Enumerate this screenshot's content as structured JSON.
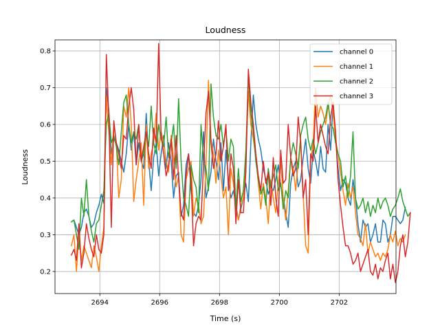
{
  "chart_data": {
    "type": "line",
    "title": "Loudness",
    "xlabel": "Time (s)",
    "ylabel": "Loudness",
    "xlim": [
      2692.5,
      2703.9
    ],
    "ylim": [
      0.14,
      0.83
    ],
    "xticks": [
      2694,
      2696,
      2698,
      2700,
      2702
    ],
    "yticks": [
      0.2,
      0.3,
      0.4,
      0.5,
      0.6,
      0.7,
      0.8
    ],
    "grid": true,
    "legend_position": "top-right",
    "x_start": 2693.05,
    "x_step": 0.0833,
    "series": [
      {
        "name": "channel 0",
        "color": "#1f77b4",
        "values": [
          0.335,
          0.34,
          0.32,
          0.3,
          0.32,
          0.36,
          0.37,
          0.35,
          0.32,
          0.33,
          0.36,
          0.38,
          0.41,
          0.385,
          0.7,
          0.64,
          0.52,
          0.56,
          0.55,
          0.53,
          0.5,
          0.47,
          0.52,
          0.6,
          0.53,
          0.58,
          0.49,
          0.55,
          0.5,
          0.48,
          0.63,
          0.5,
          0.42,
          0.51,
          0.55,
          0.46,
          0.52,
          0.57,
          0.48,
          0.55,
          0.5,
          0.4,
          0.46,
          0.47,
          0.35,
          0.38,
          0.49,
          0.52,
          0.42,
          0.36,
          0.35,
          0.38,
          0.45,
          0.58,
          0.4,
          0.43,
          0.47,
          0.56,
          0.5,
          0.45,
          0.55,
          0.42,
          0.53,
          0.45,
          0.4,
          0.42,
          0.38,
          0.34,
          0.37,
          0.4,
          0.44,
          0.39,
          0.55,
          0.68,
          0.6,
          0.56,
          0.53,
          0.48,
          0.45,
          0.41,
          0.43,
          0.42,
          0.45,
          0.49,
          0.43,
          0.4,
          0.36,
          0.32,
          0.44,
          0.48,
          0.5,
          0.43,
          0.45,
          0.51,
          0.56,
          0.48,
          0.44,
          0.53,
          0.5,
          0.46,
          0.54,
          0.48,
          0.47,
          0.6,
          0.53,
          0.66,
          0.56,
          0.48,
          0.42,
          0.45,
          0.44,
          0.4,
          0.38,
          0.45,
          0.4,
          0.33,
          0.28,
          0.34,
          0.32,
          0.33,
          0.28,
          0.3,
          0.33,
          0.28,
          0.28,
          0.34,
          0.33,
          0.28,
          0.3,
          0.35,
          0.35,
          0.34,
          0.33,
          0.34,
          0.375
        ]
      },
      {
        "name": "channel 1",
        "color": "#ff7f0e",
        "values": [
          0.27,
          0.3,
          0.2,
          0.3,
          0.23,
          0.27,
          0.25,
          0.23,
          0.21,
          0.27,
          0.24,
          0.2,
          0.27,
          0.32,
          0.68,
          0.58,
          0.49,
          0.6,
          0.55,
          0.4,
          0.45,
          0.65,
          0.62,
          0.7,
          0.6,
          0.39,
          0.45,
          0.5,
          0.55,
          0.38,
          0.6,
          0.48,
          0.52,
          0.55,
          0.63,
          0.53,
          0.58,
          0.55,
          0.5,
          0.47,
          0.57,
          0.51,
          0.43,
          0.46,
          0.3,
          0.28,
          0.45,
          0.48,
          0.5,
          0.35,
          0.4,
          0.38,
          0.33,
          0.35,
          0.49,
          0.72,
          0.56,
          0.52,
          0.44,
          0.53,
          0.46,
          0.4,
          0.43,
          0.3,
          0.48,
          0.44,
          0.37,
          0.34,
          0.38,
          0.4,
          0.5,
          0.69,
          0.6,
          0.56,
          0.51,
          0.44,
          0.37,
          0.44,
          0.4,
          0.33,
          0.45,
          0.4,
          0.36,
          0.44,
          0.5,
          0.4,
          0.34,
          0.42,
          0.51,
          0.48,
          0.42,
          0.5,
          0.56,
          0.41,
          0.27,
          0.25,
          0.5,
          0.55,
          0.7,
          0.62,
          0.65,
          0.63,
          0.6,
          0.65,
          0.68,
          0.63,
          0.56,
          0.52,
          0.47,
          0.42,
          0.38,
          0.44,
          0.4,
          0.43,
          0.36,
          0.3,
          0.29,
          0.27,
          0.33,
          0.25,
          0.28,
          0.26,
          0.24,
          0.25,
          0.23,
          0.25,
          0.24,
          0.26,
          0.3,
          0.28,
          0.31,
          0.27,
          0.29,
          0.28,
          0.3
        ]
      },
      {
        "name": "channel 2",
        "color": "#2ca02c",
        "values": [
          0.335,
          0.34,
          0.3,
          0.26,
          0.4,
          0.35,
          0.45,
          0.35,
          0.31,
          0.28,
          0.33,
          0.34,
          0.38,
          0.42,
          0.6,
          0.63,
          0.55,
          0.57,
          0.54,
          0.49,
          0.58,
          0.66,
          0.68,
          0.6,
          0.55,
          0.58,
          0.56,
          0.6,
          0.5,
          0.52,
          0.58,
          0.54,
          0.65,
          0.55,
          0.52,
          0.6,
          0.56,
          0.54,
          0.62,
          0.51,
          0.55,
          0.6,
          0.48,
          0.67,
          0.5,
          0.4,
          0.38,
          0.35,
          0.49,
          0.45,
          0.43,
          0.36,
          0.6,
          0.5,
          0.48,
          0.42,
          0.71,
          0.62,
          0.57,
          0.56,
          0.6,
          0.54,
          0.59,
          0.5,
          0.56,
          0.54,
          0.37,
          0.48,
          0.39,
          0.42,
          0.53,
          0.73,
          0.63,
          0.58,
          0.5,
          0.45,
          0.41,
          0.43,
          0.38,
          0.48,
          0.43,
          0.46,
          0.49,
          0.42,
          0.44,
          0.37,
          0.42,
          0.4,
          0.51,
          0.55,
          0.52,
          0.48,
          0.57,
          0.6,
          0.62,
          0.56,
          0.53,
          0.56,
          0.52,
          0.55,
          0.58,
          0.6,
          0.62,
          0.66,
          0.6,
          0.59,
          0.55,
          0.52,
          0.5,
          0.43,
          0.46,
          0.4,
          0.46,
          0.58,
          0.4,
          0.37,
          0.38,
          0.4,
          0.36,
          0.39,
          0.35,
          0.38,
          0.36,
          0.4,
          0.37,
          0.39,
          0.4,
          0.38,
          0.35,
          0.37,
          0.38,
          0.4,
          0.425,
          0.39,
          0.37,
          0.35,
          0.36
        ]
      },
      {
        "name": "channel 3",
        "color": "#d62728",
        "values": [
          0.245,
          0.26,
          0.23,
          0.33,
          0.21,
          0.25,
          0.33,
          0.29,
          0.26,
          0.24,
          0.3,
          0.26,
          0.25,
          0.3,
          0.79,
          0.62,
          0.32,
          0.61,
          0.55,
          0.52,
          0.48,
          0.57,
          0.56,
          0.65,
          0.7,
          0.64,
          0.49,
          0.6,
          0.5,
          0.54,
          0.58,
          0.52,
          0.48,
          0.59,
          0.55,
          0.82,
          0.57,
          0.52,
          0.46,
          0.49,
          0.56,
          0.45,
          0.57,
          0.45,
          0.36,
          0.34,
          0.46,
          0.52,
          0.45,
          0.27,
          0.33,
          0.35,
          0.34,
          0.49,
          0.63,
          0.69,
          0.55,
          0.48,
          0.52,
          0.61,
          0.5,
          0.54,
          0.6,
          0.42,
          0.52,
          0.48,
          0.33,
          0.45,
          0.36,
          0.36,
          0.47,
          0.75,
          0.66,
          0.6,
          0.52,
          0.46,
          0.42,
          0.5,
          0.44,
          0.47,
          0.38,
          0.51,
          0.4,
          0.35,
          0.53,
          0.44,
          0.45,
          0.6,
          0.51,
          0.46,
          0.48,
          0.62,
          0.55,
          0.4,
          0.45,
          0.3,
          0.52,
          0.5,
          0.65,
          0.55,
          0.6,
          0.57,
          0.54,
          0.52,
          0.62,
          0.66,
          0.58,
          0.45,
          0.38,
          0.32,
          0.27,
          0.27,
          0.25,
          0.22,
          0.23,
          0.25,
          0.2,
          0.22,
          0.24,
          0.26,
          0.2,
          0.19,
          0.22,
          0.18,
          0.21,
          0.2,
          0.23,
          0.25,
          0.18,
          0.22,
          0.17,
          0.2,
          0.27,
          0.3,
          0.24,
          0.28,
          0.36
        ]
      }
    ]
  }
}
